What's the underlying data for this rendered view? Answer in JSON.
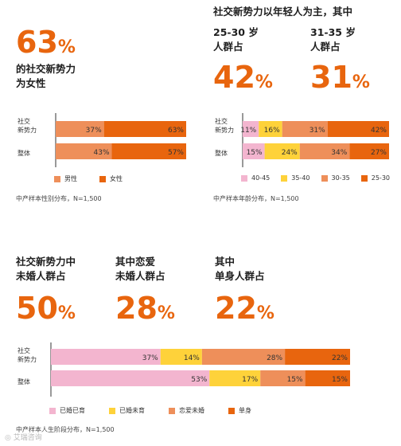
{
  "panels": {
    "gender": {
      "stat": "63",
      "stat_unit": "%",
      "heading": "的社交新势力\n为女性",
      "note": "中产样本性别分布，N=1,500"
    },
    "age": {
      "heading": "社交新势力以年轻人为主，其中",
      "stats": [
        {
          "label": "25-30 岁\n人群占",
          "value": "42",
          "unit": "%"
        },
        {
          "label": "31-35 岁\n人群占",
          "value": "31",
          "unit": "%"
        }
      ],
      "note": "中产样本年龄分布，N=1,500"
    },
    "marital": {
      "stats": [
        {
          "label": "社交新势力中\n未婚人群占",
          "value": "50",
          "unit": "%"
        },
        {
          "label": "其中恋爱\n未婚人群占",
          "value": "28",
          "unit": "%"
        },
        {
          "label": "其中\n单身人群占",
          "value": "22",
          "unit": "%"
        }
      ],
      "note": "中产样本人生阶段分布，N=1,500"
    }
  },
  "watermark": "艾瑞咨询",
  "colors": {
    "orange_dark": "#e8650e",
    "orange_light": "#ee8f5a",
    "yellow": "#fed23a",
    "pink": "#f3b5cf",
    "text": "#1e1e1e"
  },
  "chart_data": [
    {
      "type": "bar",
      "orientation": "horizontal",
      "stacked": true,
      "categories": [
        "社交\n新势力",
        "整体"
      ],
      "series": [
        {
          "name": "男性",
          "values": [
            37,
            43
          ],
          "color": "#ee8f5a"
        },
        {
          "name": "女性",
          "values": [
            63,
            57
          ],
          "color": "#e8650e"
        }
      ],
      "unit": "%",
      "legend": "bottom"
    },
    {
      "type": "bar",
      "orientation": "horizontal",
      "stacked": true,
      "categories": [
        "社交\n新势力",
        "整体"
      ],
      "series": [
        {
          "name": "40-45",
          "values": [
            11,
            15
          ],
          "color": "#f3b5cf"
        },
        {
          "name": "35-40",
          "values": [
            16,
            24
          ],
          "color": "#fed23a"
        },
        {
          "name": "30-35",
          "values": [
            31,
            34
          ],
          "color": "#ee8f5a"
        },
        {
          "name": "25-30",
          "values": [
            42,
            27
          ],
          "color": "#e8650e"
        }
      ],
      "unit": "%",
      "legend": "bottom"
    },
    {
      "type": "bar",
      "orientation": "horizontal",
      "stacked": true,
      "categories": [
        "社交\n新势力",
        "整体"
      ],
      "series": [
        {
          "name": "已婚已育",
          "values": [
            37,
            53
          ],
          "color": "#f3b5cf"
        },
        {
          "name": "已婚未育",
          "values": [
            14,
            17
          ],
          "color": "#fed23a"
        },
        {
          "name": "恋爱未婚",
          "values": [
            28,
            15
          ],
          "color": "#ee8f5a"
        },
        {
          "name": "单身",
          "values": [
            22,
            15
          ],
          "color": "#e8650e"
        }
      ],
      "unit": "%",
      "legend": "bottom"
    }
  ]
}
